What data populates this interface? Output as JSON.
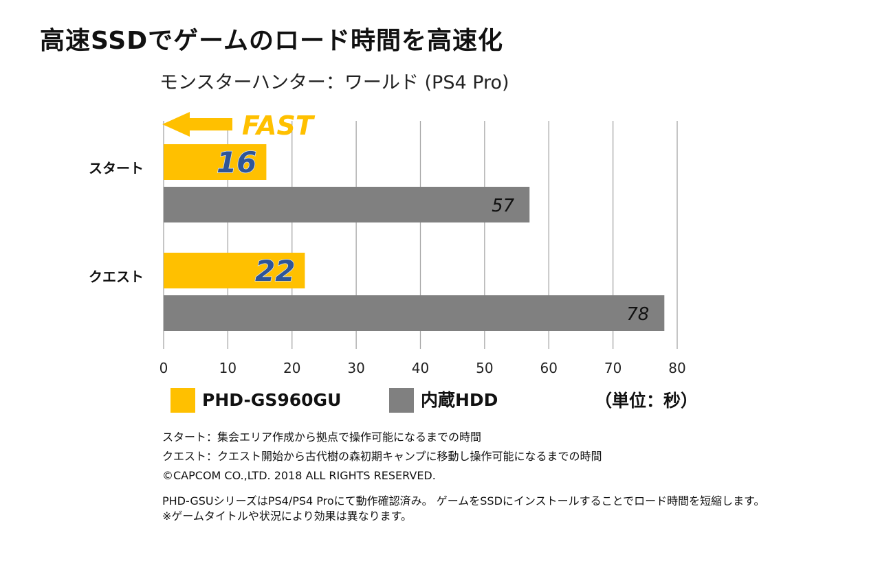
{
  "headline": "高速SSDでゲームのロード時間を高速化",
  "chart_data": {
    "type": "bar",
    "orientation": "horizontal",
    "title": "モンスターハンター：ワールド (PS4 Pro)",
    "categories": [
      "スタート",
      "クエスト"
    ],
    "series": [
      {
        "name": "PHD-GS960GU",
        "values": [
          16,
          22
        ],
        "color": "#FFC000"
      },
      {
        "name": "内蔵HDD",
        "values": [
          57,
          78
        ],
        "color": "#808080"
      }
    ],
    "xlim": [
      0,
      80
    ],
    "xticks": [
      0,
      10,
      20,
      30,
      40,
      50,
      60,
      70,
      80
    ],
    "grid": true,
    "annotation": "FAST",
    "legend_position": "bottom",
    "unit_label": "（単位：秒）"
  },
  "notes": [
    "スタート：集会エリア作成から拠点で操作可能になるまでの時間",
    "クエスト：クエスト開始から古代樹の森初期キャンプに移動し操作可能になるまでの時間",
    "©CAPCOM CO.,LTD. 2018 ALL RIGHTS RESERVED.",
    "PHD-GSUシリーズはPS4/PS4 Proにて動作確認済み。 ゲームをSSDにインストールすることでロード時間を短縮します。",
    "※ゲームタイトルや状況により効果は異なります。"
  ]
}
